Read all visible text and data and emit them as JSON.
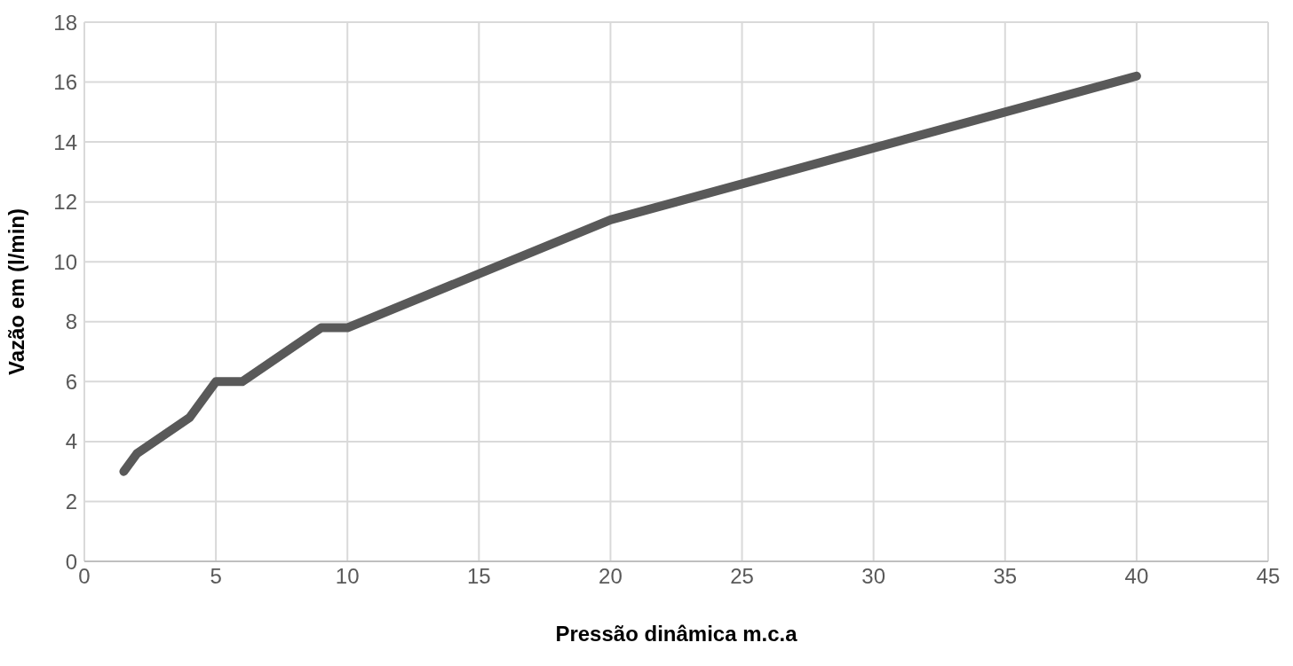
{
  "chart_data": {
    "type": "line",
    "xlabel": "Pressão dinâmica  m.c.a",
    "ylabel": "Vazão em (l/min)",
    "x": [
      1.5,
      2,
      4,
      5,
      6,
      9,
      10,
      20,
      40
    ],
    "series": [
      {
        "color": "#595959",
        "values": [
          3.0,
          3.6,
          4.8,
          6.0,
          6.0,
          7.8,
          7.8,
          11.4,
          16.2
        ]
      }
    ],
    "xlim": [
      0,
      45
    ],
    "xticks": [
      0,
      5,
      10,
      15,
      20,
      25,
      30,
      35,
      40,
      45
    ],
    "ylim": [
      0,
      18
    ],
    "yticks": [
      0,
      2,
      4,
      6,
      8,
      10,
      12,
      14,
      16,
      18
    ],
    "grid": true,
    "legend": false,
    "marker": "none",
    "line_style": "solid"
  }
}
